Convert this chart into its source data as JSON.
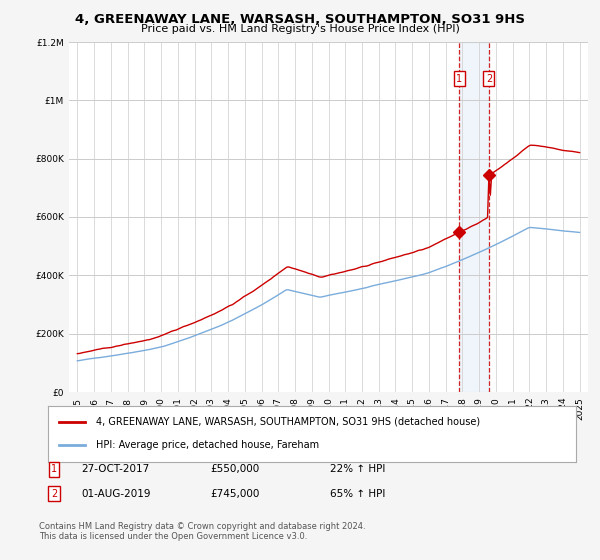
{
  "title": "4, GREENAWAY LANE, WARSASH, SOUTHAMPTON, SO31 9HS",
  "subtitle": "Price paid vs. HM Land Registry's House Price Index (HPI)",
  "legend_label_red": "4, GREENAWAY LANE, WARSASH, SOUTHAMPTON, SO31 9HS (detached house)",
  "legend_label_blue": "HPI: Average price, detached house, Fareham",
  "footnote": "Contains HM Land Registry data © Crown copyright and database right 2024.\nThis data is licensed under the Open Government Licence v3.0.",
  "annotation1_label": "1",
  "annotation1_date": "27-OCT-2017",
  "annotation1_price": "£550,000",
  "annotation1_hpi": "22% ↑ HPI",
  "annotation1_year": 2017.82,
  "annotation1_value": 550000,
  "annotation2_label": "2",
  "annotation2_date": "01-AUG-2019",
  "annotation2_price": "£745,000",
  "annotation2_hpi": "65% ↑ HPI",
  "annotation2_year": 2019.58,
  "annotation2_value": 745000,
  "ylim": [
    0,
    1200000
  ],
  "xlim_start": 1994.5,
  "xlim_end": 2025.5,
  "background_color": "#f5f5f5",
  "plot_bg_color": "#ffffff",
  "grid_color": "#cccccc",
  "red_color": "#cc0000",
  "blue_color": "#7aacdc",
  "shade_color": "#ddeeff"
}
